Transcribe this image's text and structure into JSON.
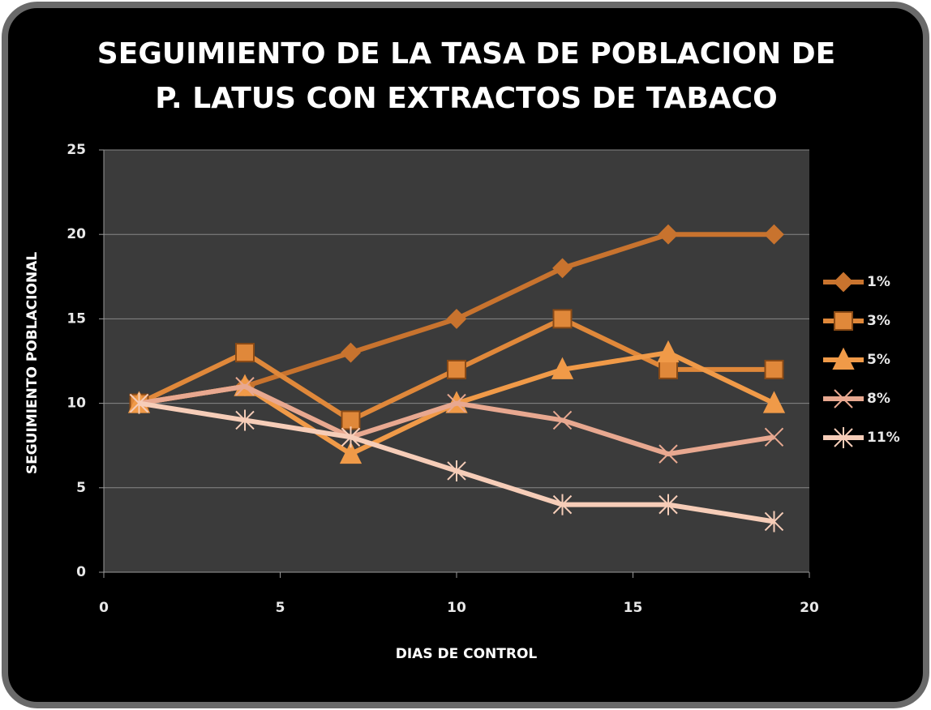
{
  "chart_data": {
    "type": "line",
    "title_lines": [
      "SEGUIMIENTO DE LA TASA DE POBLACION DE",
      "P. LATUS  CON EXTRACTOS DE TABACO"
    ],
    "xlabel": "DIAS DE CONTROL",
    "ylabel": "SEGUIMIENTO POBLACIONAL",
    "x": [
      1,
      4,
      7,
      10,
      13,
      16,
      19
    ],
    "series": [
      {
        "name": "1%",
        "color": "#c8732e",
        "marker": "diamond",
        "values": [
          10,
          11,
          13,
          15,
          18,
          20,
          20
        ]
      },
      {
        "name": "3%",
        "color": "#e0883a",
        "marker": "square",
        "values": [
          10,
          13,
          9,
          12,
          15,
          12,
          12
        ]
      },
      {
        "name": "5%",
        "color": "#f09a48",
        "marker": "triangle",
        "values": [
          10,
          11,
          7,
          10,
          12,
          13,
          10
        ]
      },
      {
        "name": "8%",
        "color": "#e8a890",
        "marker": "x",
        "values": [
          10,
          11,
          8,
          10,
          9,
          7,
          8
        ]
      },
      {
        "name": "11%",
        "color": "#f6cdb8",
        "marker": "star",
        "values": [
          10,
          9,
          8,
          6,
          4,
          4,
          3
        ]
      }
    ],
    "xlim": [
      0,
      20
    ],
    "xticks": [
      0,
      5,
      10,
      15,
      20
    ],
    "ylim": [
      0,
      25
    ],
    "yticks": [
      0,
      5,
      10,
      15,
      20,
      25
    ],
    "grid": true,
    "legend": "right"
  }
}
